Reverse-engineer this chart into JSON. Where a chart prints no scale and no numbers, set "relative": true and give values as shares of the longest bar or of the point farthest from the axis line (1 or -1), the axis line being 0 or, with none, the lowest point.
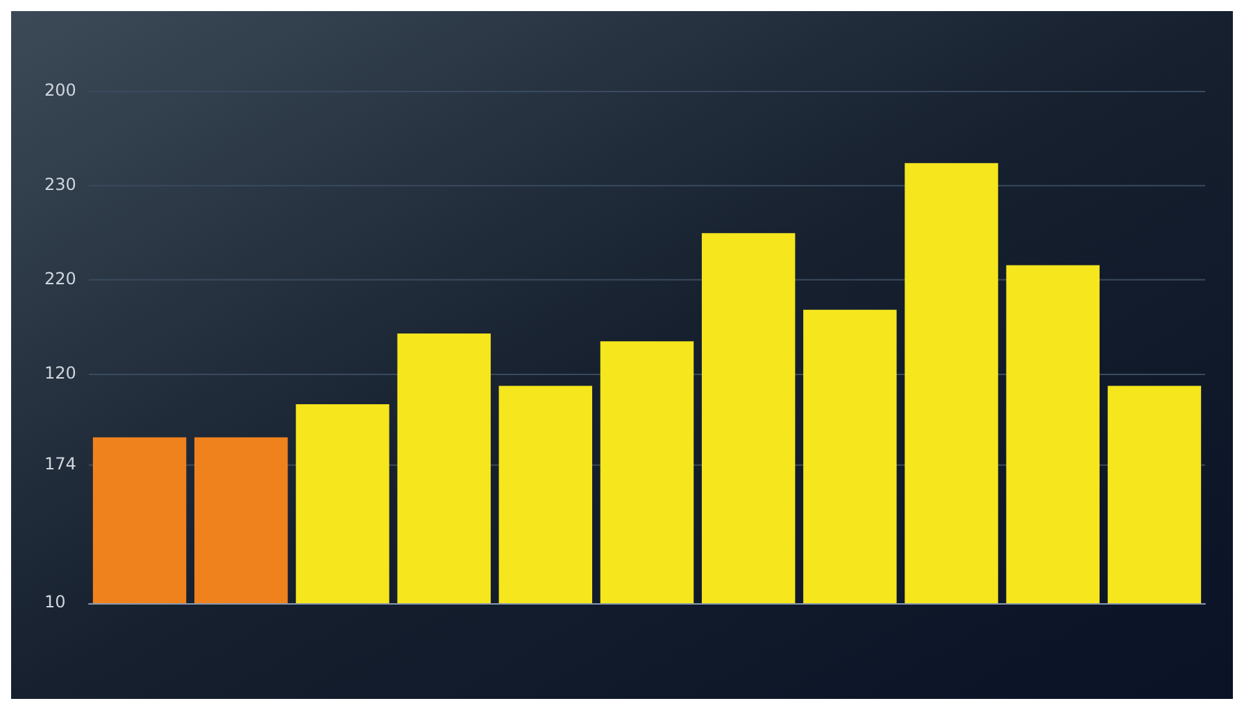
{
  "chart_data": {
    "type": "bar",
    "relative": true,
    "categories": [
      null,
      null,
      null,
      null,
      null,
      null,
      null,
      null,
      null,
      null,
      null
    ],
    "values": [
      0.377,
      0.377,
      0.452,
      0.613,
      0.494,
      0.595,
      0.841,
      0.667,
      1,
      0.768,
      0.494
    ],
    "colors": [
      "#f0821e",
      "#f0821e",
      "#f5e61e",
      "#f5e61e",
      "#f5e61e",
      "#f5e61e",
      "#f5e61e",
      "#f5e61e",
      "#f5e61e",
      "#f5e61e",
      "#f5e61e"
    ],
    "annotations": [
      "200",
      "230",
      "220",
      "120",
      "174",
      "10"
    ],
    "grid": "y"
  }
}
